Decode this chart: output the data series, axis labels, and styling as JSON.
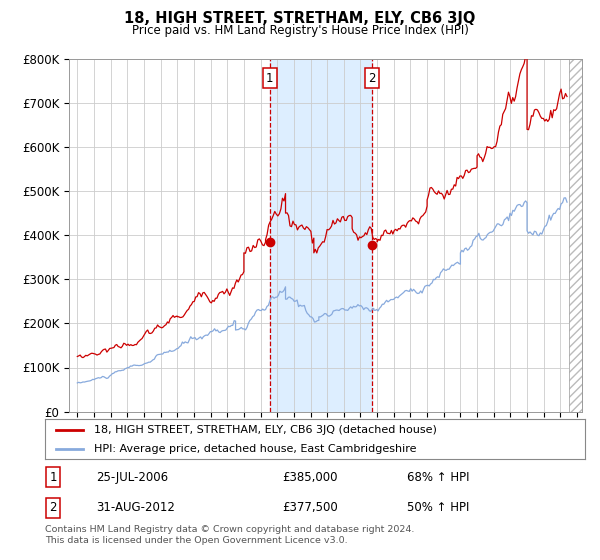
{
  "title": "18, HIGH STREET, STRETHAM, ELY, CB6 3JQ",
  "subtitle": "Price paid vs. HM Land Registry's House Price Index (HPI)",
  "legend_line1": "18, HIGH STREET, STRETHAM, ELY, CB6 3JQ (detached house)",
  "legend_line2": "HPI: Average price, detached house, East Cambridgeshire",
  "annotation1_date": "25-JUL-2006",
  "annotation1_price": "£385,000",
  "annotation1_hpi": "68% ↑ HPI",
  "annotation2_date": "31-AUG-2012",
  "annotation2_price": "£377,500",
  "annotation2_hpi": "50% ↑ HPI",
  "footer": "Contains HM Land Registry data © Crown copyright and database right 2024.\nThis data is licensed under the Open Government Licence v3.0.",
  "red_color": "#cc0000",
  "blue_color": "#88aadd",
  "bg_color": "#ffffff",
  "grid_color": "#cccccc",
  "highlight_color": "#ddeeff",
  "ylim": [
    0,
    800000
  ],
  "yticks": [
    0,
    100000,
    200000,
    300000,
    400000,
    500000,
    600000,
    700000,
    800000
  ],
  "xlim_start": 1994.5,
  "xlim_end": 2025.3,
  "sale1_x": 2006.56,
  "sale1_y": 385000,
  "sale2_x": 2012.67,
  "sale2_y": 377500,
  "shade_x1": 2006.56,
  "shade_x2": 2012.67,
  "hatch_start": 2024.5
}
